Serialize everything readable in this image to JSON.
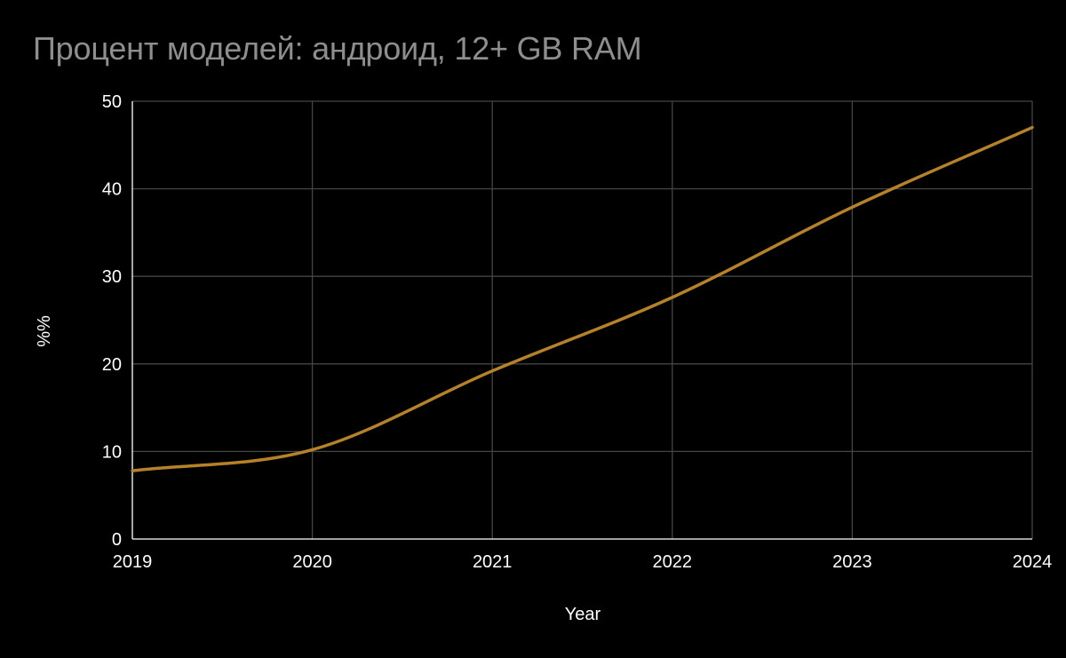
{
  "chart_data": {
    "type": "line",
    "title": "Процент моделей: андроид, 12+ GB RAM",
    "xlabel": "Year",
    "ylabel": "%%",
    "x": [
      2019,
      2020,
      2021,
      2022,
      2023,
      2024
    ],
    "xlim": [
      2019,
      2024
    ],
    "ylim": [
      0,
      50
    ],
    "yticks": [
      0,
      10,
      20,
      30,
      40,
      50
    ],
    "xticks": [
      2019,
      2020,
      2021,
      2022,
      2023,
      2024
    ],
    "grid": true,
    "legend": "none",
    "series": [
      {
        "values": [
          7.8,
          10.2,
          19.2,
          27.6,
          37.9,
          47.0
        ],
        "color": "#b5822a"
      }
    ],
    "background_color": "#000000",
    "grid_color": "#454545",
    "axis_color": "#ffffff",
    "title_color": "#8e8e8e"
  }
}
